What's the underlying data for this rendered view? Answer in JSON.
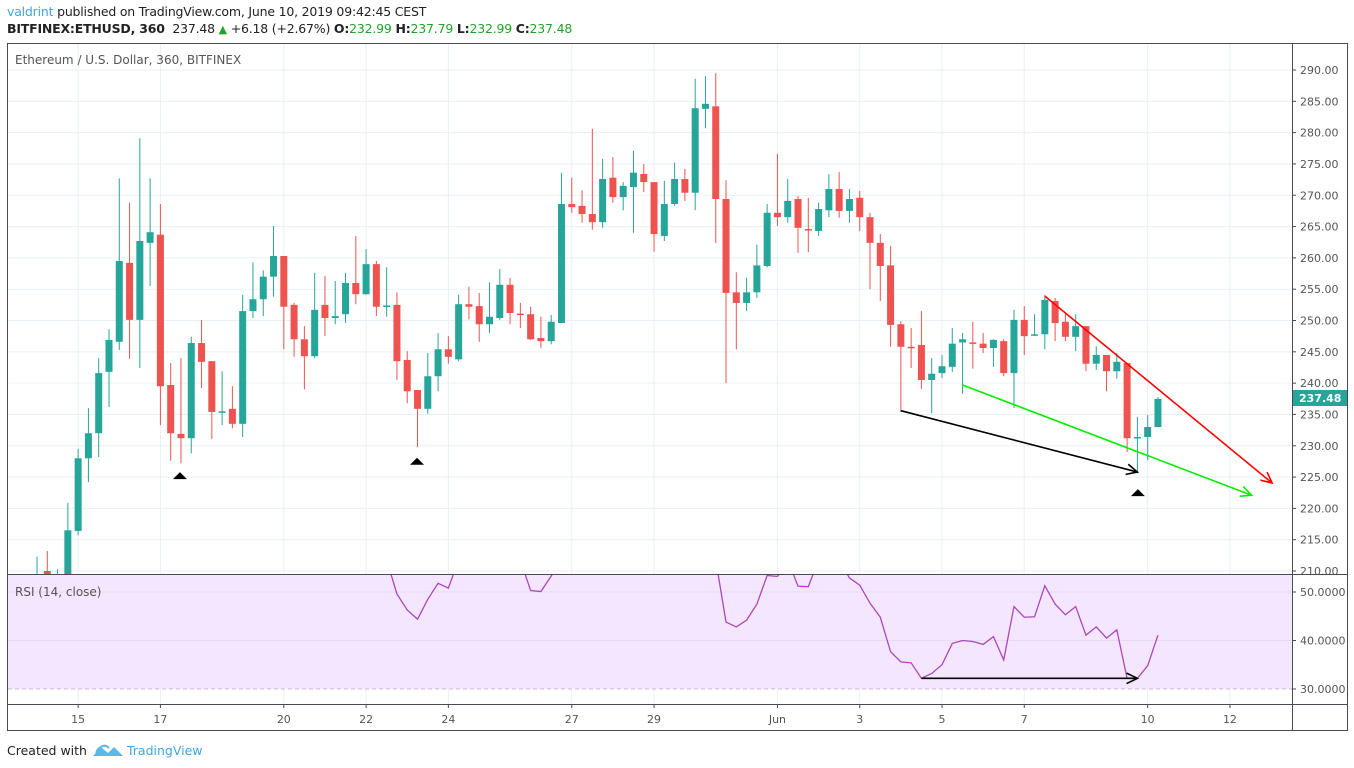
{
  "header": {
    "user": "valdrint",
    "published": "published on TradingView.com, June 10, 2019 09:42:45 CEST",
    "symbol": "BITFINEX:ETHUSD, 360",
    "last": "237.48",
    "change": "+6.18 (+2.67%)",
    "o_label": "O:",
    "o": "232.99",
    "h_label": "H:",
    "h": "237.79",
    "l_label": "L:",
    "l": "232.99",
    "c_label": "C:",
    "c": "237.48",
    "up_icon": "triangle-up"
  },
  "footer": {
    "created_with": "Created with",
    "brand": "TradingView",
    "logo_icon": "tradingview-cloud-logo"
  },
  "colors": {
    "up": "#26a69a",
    "down": "#ef5350",
    "rsi": "#ab47bc",
    "rsi_band": "#f4e6fe",
    "grid": "#e8f0f5",
    "last_price_badge": "#26a69a",
    "accent": "#3fa6de"
  },
  "chart_data": [
    {
      "type": "candlestick",
      "title": "Ethereum / U.S. Dollar, 360, BITFINEX",
      "y_ticks": [
        "290.00",
        "285.00",
        "280.00",
        "275.00",
        "270.00",
        "265.00",
        "260.00",
        "255.00",
        "250.00",
        "245.00",
        "240.00",
        "235.00",
        "230.00",
        "225.00",
        "220.00",
        "215.00",
        "210.00"
      ],
      "ylim": [
        210,
        290
      ],
      "grid": true,
      "last_price_label": "237.48",
      "x_ticks": [
        {
          "label": "15",
          "candle": 4
        },
        {
          "label": "17",
          "candle": 12
        },
        {
          "label": "20",
          "candle": 24
        },
        {
          "label": "22",
          "candle": 32
        },
        {
          "label": "24",
          "candle": 40
        },
        {
          "label": "27",
          "candle": 52
        },
        {
          "label": "29",
          "candle": 60
        },
        {
          "label": "Jun",
          "candle": 72
        },
        {
          "label": "3",
          "candle": 80
        },
        {
          "label": "5",
          "candle": 88
        },
        {
          "label": "7",
          "candle": 96
        },
        {
          "label": "10",
          "candle": 108
        },
        {
          "label": "12",
          "candle": 116
        }
      ],
      "ohlc": [
        [
          205,
          212.3,
          203,
          209
        ],
        [
          210,
          213.2,
          205,
          207
        ],
        [
          207,
          210.3,
          204,
          208
        ],
        [
          208,
          220.9,
          206,
          216.5
        ],
        [
          216.4,
          229.5,
          215.7,
          228.0
        ],
        [
          228.0,
          236.0,
          224.2,
          232.0
        ],
        [
          232.0,
          244.0,
          228.2,
          241.6
        ],
        [
          241.8,
          248.6,
          236.2,
          246.9
        ],
        [
          246.6,
          272.7,
          245.3,
          259.5
        ],
        [
          259.2,
          268.8,
          243.9,
          250.1
        ],
        [
          250.1,
          279.1,
          242.4,
          262.7
        ],
        [
          262.4,
          272.7,
          255.5,
          264.1
        ],
        [
          263.7,
          268.6,
          233.3,
          239.5
        ],
        [
          239.7,
          243.2,
          227.6,
          232.0
        ],
        [
          231.9,
          244.0,
          227.2,
          231.2
        ],
        [
          231.2,
          247.4,
          228.8,
          246.4
        ],
        [
          246.4,
          250.1,
          239.2,
          243.4
        ],
        [
          243.5,
          243.5,
          231.1,
          235.4
        ],
        [
          235.3,
          241.9,
          233.3,
          235.5
        ],
        [
          235.9,
          239.5,
          232.8,
          233.5
        ],
        [
          233.5,
          254.1,
          231.4,
          251.5
        ],
        [
          251.5,
          259.3,
          250.4,
          253.4
        ],
        [
          253.4,
          258.0,
          250.7,
          257.0
        ],
        [
          257.0,
          265.1,
          253.8,
          260.3
        ],
        [
          260.3,
          260.3,
          245.4,
          252.2
        ],
        [
          252.5,
          252.8,
          244.2,
          247.0
        ],
        [
          247.0,
          249.1,
          239.0,
          244.3
        ],
        [
          244.3,
          257.6,
          244.0,
          251.7
        ],
        [
          252.5,
          257.1,
          247.5,
          250.4
        ],
        [
          250.4,
          256.3,
          249.4,
          250.7
        ],
        [
          251.0,
          257.6,
          249.6,
          256.0
        ],
        [
          256.0,
          263.5,
          252.6,
          254.2
        ],
        [
          254.2,
          261.4,
          254.1,
          259.0
        ],
        [
          259.0,
          259.5,
          250.7,
          252.2
        ],
        [
          252.2,
          258.5,
          250.6,
          252.4
        ],
        [
          252.5,
          254.5,
          240.5,
          243.5
        ],
        [
          243.7,
          245.1,
          236.8,
          238.7
        ],
        [
          238.9,
          238.9,
          229.8,
          235.9
        ],
        [
          235.9,
          244.8,
          235.1,
          241.1
        ],
        [
          241.1,
          248.0,
          238.7,
          245.4
        ],
        [
          245.4,
          247.5,
          243.1,
          244.2
        ],
        [
          243.8,
          254.1,
          243.5,
          252.6
        ],
        [
          252.6,
          255.4,
          250.2,
          252.2
        ],
        [
          252.3,
          254.4,
          246.6,
          249.4
        ],
        [
          249.4,
          256.1,
          248.0,
          250.6
        ],
        [
          250.4,
          258.2,
          250.1,
          255.7
        ],
        [
          255.7,
          256.8,
          249.4,
          251.2
        ],
        [
          251.1,
          252.8,
          248.8,
          251.0
        ],
        [
          251.0,
          252.2,
          246.9,
          247.0
        ],
        [
          247.2,
          250.6,
          245.6,
          246.7
        ],
        [
          246.7,
          250.9,
          246.2,
          249.8
        ],
        [
          249.6,
          273.6,
          249.6,
          268.6
        ],
        [
          268.6,
          272.8,
          267.2,
          268.1
        ],
        [
          268.3,
          270.8,
          265.6,
          267.0
        ],
        [
          267.0,
          280.6,
          264.5,
          265.7
        ],
        [
          265.7,
          275.8,
          264.8,
          272.6
        ],
        [
          272.8,
          276.1,
          268.8,
          269.7
        ],
        [
          269.7,
          272.1,
          267.6,
          271.5
        ],
        [
          271.3,
          277.1,
          264.0,
          273.6
        ],
        [
          273.4,
          275.0,
          270.5,
          272.1
        ],
        [
          272.1,
          272.1,
          261.0,
          263.8
        ],
        [
          263.5,
          272.3,
          262.7,
          268.6
        ],
        [
          268.6,
          275.2,
          268.3,
          272.6
        ],
        [
          272.6,
          274.2,
          269.1,
          270.4
        ],
        [
          270.4,
          288.6,
          267.6,
          283.9
        ],
        [
          283.8,
          289.0,
          280.7,
          284.6
        ],
        [
          284.2,
          289.5,
          262.4,
          269.4
        ],
        [
          269.4,
          272.4,
          240.0,
          254.4
        ],
        [
          254.5,
          257.7,
          245.4,
          252.8
        ],
        [
          252.8,
          256.8,
          251.5,
          254.5
        ],
        [
          254.5,
          262.1,
          253.6,
          258.8
        ],
        [
          258.7,
          268.6,
          258.5,
          267.2
        ],
        [
          267.2,
          276.6,
          265.1,
          266.5
        ],
        [
          266.5,
          272.6,
          265.6,
          269.1
        ],
        [
          269.4,
          269.9,
          260.8,
          264.8
        ],
        [
          264.6,
          269.6,
          260.9,
          264.5
        ],
        [
          264.3,
          268.8,
          263.5,
          267.8
        ],
        [
          267.6,
          273.4,
          266.5,
          271.0
        ],
        [
          271.0,
          273.7,
          266.4,
          267.5
        ],
        [
          267.5,
          271.0,
          265.6,
          269.4
        ],
        [
          269.6,
          270.7,
          264.3,
          266.5
        ],
        [
          266.5,
          267.2,
          255.0,
          262.4
        ],
        [
          262.4,
          263.8,
          253.1,
          258.7
        ],
        [
          258.8,
          261.9,
          245.8,
          249.3
        ],
        [
          249.4,
          249.9,
          235.4,
          245.8
        ],
        [
          245.8,
          248.8,
          242.4,
          245.6
        ],
        [
          246.1,
          251.5,
          239.1,
          240.5
        ],
        [
          240.5,
          244.0,
          235.2,
          241.5
        ],
        [
          241.6,
          244.5,
          240.8,
          242.7
        ],
        [
          242.6,
          248.8,
          241.8,
          246.3
        ],
        [
          246.5,
          248.0,
          238.3,
          247.0
        ],
        [
          246.5,
          249.8,
          242.3,
          246.3
        ],
        [
          246.3,
          248.0,
          244.8,
          245.6
        ],
        [
          245.6,
          247.0,
          242.6,
          246.9
        ],
        [
          246.7,
          247.0,
          241.1,
          241.6
        ],
        [
          241.6,
          251.7,
          236.0,
          250.1
        ],
        [
          250.1,
          252.3,
          244.5,
          247.5
        ],
        [
          247.7,
          251.0,
          247.5,
          247.8
        ],
        [
          247.8,
          254.1,
          245.4,
          253.3
        ],
        [
          253.1,
          253.6,
          246.7,
          249.6
        ],
        [
          249.8,
          251.2,
          246.7,
          247.4
        ],
        [
          247.4,
          251.0,
          245.1,
          249.1
        ],
        [
          249.1,
          249.1,
          241.9,
          243.1
        ],
        [
          243.1,
          245.9,
          242.1,
          244.5
        ],
        [
          244.5,
          244.5,
          238.7,
          241.9
        ],
        [
          241.9,
          244.8,
          240.7,
          243.4
        ],
        [
          243.2,
          243.2,
          229.0,
          231.2
        ],
        [
          231.2,
          234.6,
          225.6,
          231.4
        ],
        [
          231.4,
          234.9,
          227.7,
          233.0
        ],
        [
          232.99,
          237.79,
          232.99,
          237.48
        ]
      ],
      "annotations": {
        "trendlines": [
          {
            "name": "black-support-arrow",
            "color": "#000000",
            "from": [
              84,
              235.6
            ],
            "to": [
              107,
              225.8
            ],
            "arrow": true
          },
          {
            "name": "green-channel-arrow",
            "color": "#00ee00",
            "from": [
              90,
              239.7
            ],
            "to": [
              118.1,
              222.1
            ],
            "arrow": true
          },
          {
            "name": "red-resistance-arrow",
            "color": "#ff0000",
            "from": [
              98,
              253.9
            ],
            "to": [
              120.1,
              224.05
            ],
            "arrow": true
          }
        ],
        "markers": [
          {
            "shape": "triangle-up",
            "candle": 13.9,
            "price": 225.3
          },
          {
            "shape": "triangle-up",
            "candle": 36.95,
            "price": 227.6
          },
          {
            "shape": "triangle-up",
            "candle": 107.05,
            "price": 222.6
          }
        ]
      }
    },
    {
      "type": "line",
      "title": "RSI (14, close)",
      "y_ticks": [
        "50.0000",
        "40.0000",
        "30.0000"
      ],
      "ylim_visible": [
        28,
        53.5
      ],
      "band_lower": 30,
      "values": [
        null,
        null,
        null,
        null,
        null,
        null,
        null,
        null,
        null,
        null,
        null,
        null,
        null,
        null,
        null,
        null,
        null,
        null,
        null,
        null,
        null,
        null,
        null,
        null,
        null,
        null,
        null,
        null,
        null,
        null,
        null,
        null,
        null,
        null,
        null,
        49.6,
        46.3,
        44.4,
        48.5,
        51.8,
        50.8,
        null,
        null,
        null,
        null,
        null,
        null,
        null,
        50.3,
        50.1,
        53.3,
        null,
        null,
        null,
        null,
        null,
        null,
        null,
        null,
        null,
        null,
        null,
        null,
        null,
        null,
        null,
        null,
        43.8,
        42.8,
        44.2,
        47.5,
        53.4,
        53.2,
        null,
        51.2,
        51.1,
        null,
        null,
        null,
        52.9,
        51.4,
        47.7,
        44.8,
        37.7,
        35.6,
        35.4,
        32.2,
        33.2,
        35.0,
        39.4,
        40.0,
        39.8,
        39.2,
        40.8,
        36.0,
        47.0,
        44.8,
        44.9,
        51.3,
        47.5,
        45.3,
        47.0,
        41.1,
        42.8,
        40.5,
        42.2,
        32.2,
        32.2,
        34.8,
        41.1
      ],
      "annotations": {
        "trendlines": [
          {
            "name": "rsi-support-arrow",
            "color": "#000000",
            "from": [
              86,
              32.2
            ],
            "to": [
              107,
              32.2
            ],
            "arrow": true
          }
        ]
      }
    }
  ]
}
